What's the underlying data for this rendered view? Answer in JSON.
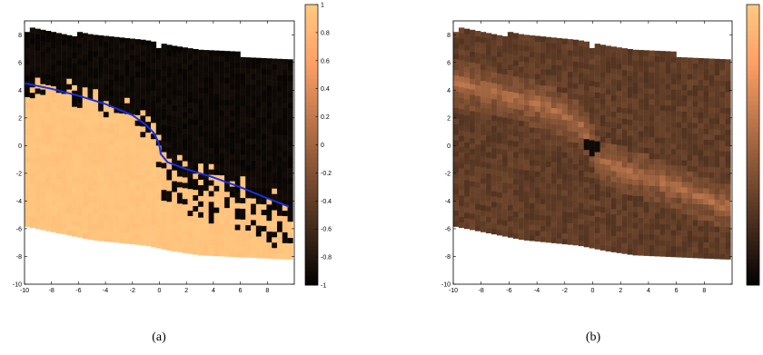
{
  "chart_data": [
    {
      "type": "heatmap",
      "panel_label": "(a)",
      "xlim": [
        -10,
        10
      ],
      "ylim": [
        -10,
        9
      ],
      "xticks": [
        -10,
        -8,
        -6,
        -4,
        -2,
        0,
        2,
        4,
        6,
        8
      ],
      "yticks": [
        -10,
        -8,
        -6,
        -4,
        -2,
        0,
        2,
        4,
        6,
        8
      ],
      "grid": false,
      "colormap": "copper",
      "colorbar": {
        "min": -1,
        "max": 1,
        "ticks": [
          -1,
          -0.8,
          -0.6,
          -0.4,
          -0.2,
          0,
          0.2,
          0.4,
          0.6,
          0.8,
          1
        ]
      },
      "region": {
        "x_left": -10,
        "x_right": 9.6,
        "top_edge": [
          [
            -10,
            8.2
          ],
          [
            -1,
            7.4
          ],
          [
            0,
            7.0
          ],
          [
            3,
            6.7
          ],
          [
            6,
            6.4
          ],
          [
            9.6,
            6.0
          ]
        ],
        "bottom_edge": [
          [
            -10,
            -5.8
          ],
          [
            -5,
            -6.8
          ],
          [
            -1,
            -7.2
          ],
          [
            1,
            -7.6
          ],
          [
            3,
            -7.9
          ],
          [
            9.6,
            -8.2
          ]
        ]
      },
      "field": "sign of boundary: +1 below the boundary line, -1 above",
      "field_noise": 0.12,
      "series": [
        {
          "type": "line",
          "color": "#1a2fe0",
          "points": [
            [
              -10,
              4.5
            ],
            [
              -8,
              4.1
            ],
            [
              -6,
              3.6
            ],
            [
              -4,
              3.0
            ],
            [
              -2,
              2.2
            ],
            [
              -1,
              1.5
            ],
            [
              -0.4,
              0.9
            ],
            [
              -0.1,
              0.3
            ],
            [
              0,
              0
            ],
            [
              0.1,
              -0.6
            ],
            [
              0.6,
              -1.2
            ],
            [
              2,
              -1.7
            ],
            [
              4,
              -2.3
            ],
            [
              6,
              -3.0
            ],
            [
              8,
              -3.8
            ],
            [
              9.6,
              -4.4
            ]
          ]
        }
      ]
    },
    {
      "type": "heatmap",
      "panel_label": "(b)",
      "xlim": [
        -10,
        10
      ],
      "ylim": [
        -10,
        9
      ],
      "xticks": [
        -10,
        -8,
        -6,
        -4,
        -2,
        0,
        2,
        4,
        6,
        8
      ],
      "yticks": [
        -10,
        -8,
        -6,
        -4,
        -2,
        0,
        2,
        4,
        6,
        8
      ],
      "grid": false,
      "colormap": "copper",
      "colorbar": {
        "min": -1,
        "max": 1,
        "ticks": []
      },
      "region": {
        "x_left": -10,
        "x_right": 9.6,
        "top_edge": [
          [
            -10,
            8.2
          ],
          [
            -1,
            7.4
          ],
          [
            0,
            7.0
          ],
          [
            3,
            6.7
          ],
          [
            6,
            6.4
          ],
          [
            9.6,
            6.0
          ]
        ],
        "bottom_edge": [
          [
            -10,
            -5.8
          ],
          [
            -5,
            -6.8
          ],
          [
            -1,
            -7.2
          ],
          [
            1,
            -7.6
          ],
          [
            3,
            -7.9
          ],
          [
            9.6,
            -8.2
          ]
        ]
      },
      "field": "background level 0.3, brighter band (~0.55) along the boundary line, dark spot (~0.05) near the origin",
      "background_level": 0.3,
      "band_level": 0.55,
      "spot": {
        "x": 0,
        "y": 0,
        "radius": 0.6,
        "level": 0.05
      },
      "field_noise": 0.05
    }
  ]
}
